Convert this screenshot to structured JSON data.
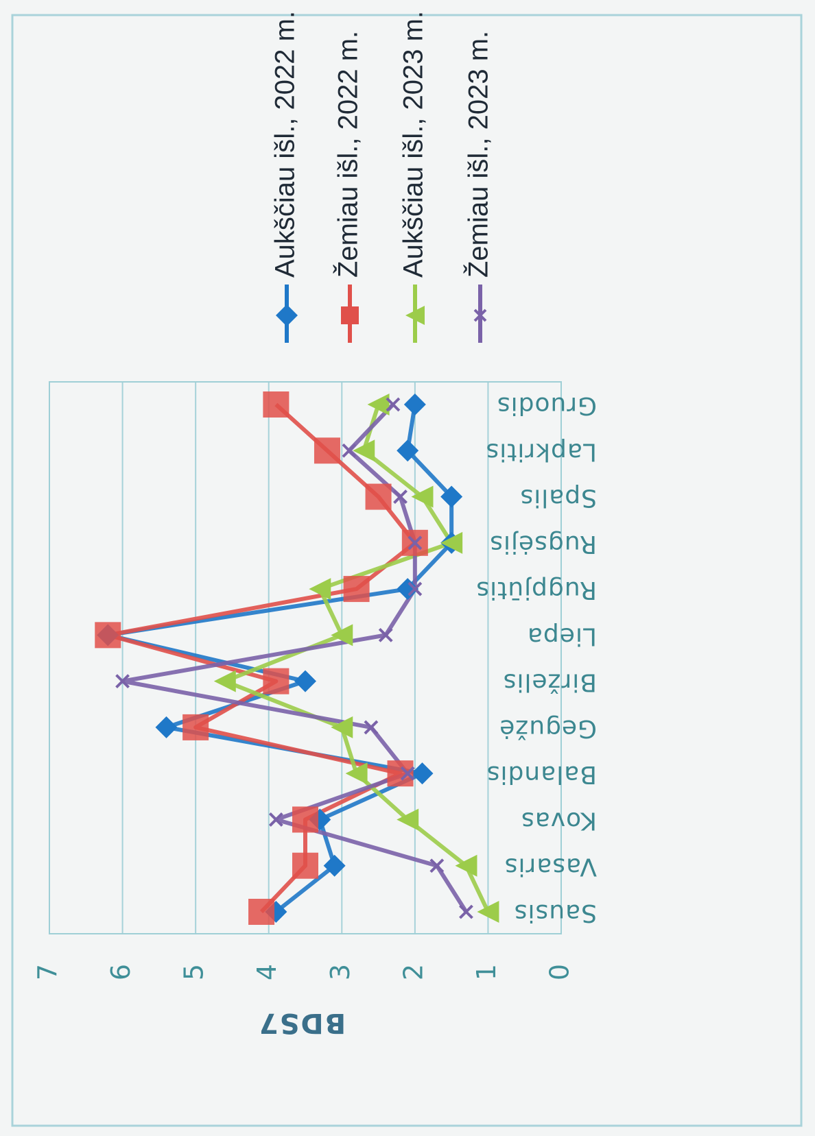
{
  "chart_data": {
    "type": "line",
    "ylabel": "BDS7",
    "ylim": [
      0,
      7
    ],
    "yticks": [
      0,
      1,
      2,
      3,
      4,
      5,
      6,
      7
    ],
    "grid": "horizontal",
    "legend_position": "right",
    "orientation_note": "image is rotated 180 degrees",
    "categories": [
      "Sausis",
      "Vasaris",
      "Kovas",
      "Balandis",
      "Gegužė",
      "Birželis",
      "Liepa",
      "Rugpjūtis",
      "Rugsėjis",
      "Spalis",
      "Lapkritis",
      "Gruodis"
    ],
    "series": [
      {
        "name": "Aukščiau išl., 2022 m.",
        "color": "#1f78c8",
        "marker": "diamond",
        "values": [
          3.9,
          3.1,
          3.3,
          1.9,
          5.4,
          3.5,
          6.2,
          2.1,
          1.5,
          1.5,
          2.1,
          2.0
        ]
      },
      {
        "name": "Žemiau išl., 2022 m.",
        "color": "#e0504a",
        "marker": "square",
        "values": [
          4.1,
          3.5,
          3.5,
          2.2,
          5.0,
          3.9,
          6.2,
          2.8,
          2.0,
          2.5,
          3.2,
          3.9
        ]
      },
      {
        "name": "Aukščiau išl., 2023 m.",
        "color": "#9ccc4a",
        "marker": "triangle",
        "values": [
          1.0,
          1.3,
          2.1,
          2.8,
          3.0,
          4.6,
          3.0,
          3.3,
          1.5,
          1.9,
          2.7,
          2.5
        ]
      },
      {
        "name": "Žemiau išl., 2023 m.",
        "color": "#7a62a8",
        "marker": "x",
        "values": [
          1.3,
          1.7,
          3.9,
          2.1,
          2.6,
          6.0,
          2.4,
          2.0,
          2.0,
          2.2,
          2.9,
          2.3
        ]
      }
    ]
  }
}
